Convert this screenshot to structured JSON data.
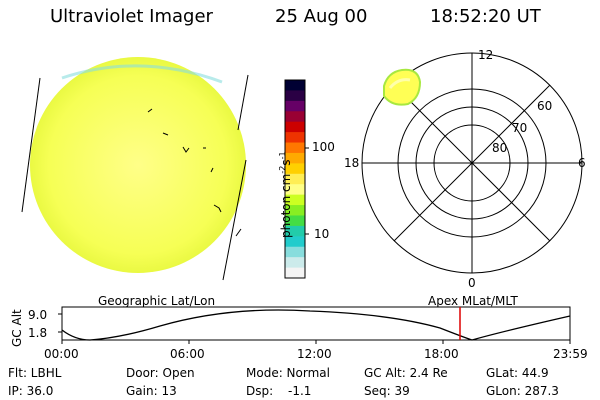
{
  "header": {
    "instrument": "Ultraviolet Imager",
    "date": "25 Aug 00",
    "time": "18:52:20 UT"
  },
  "colorbar": {
    "label": "photon cm-2s-1",
    "ticks": [
      "100",
      "10"
    ],
    "colors": [
      "#000033",
      "#2a0044",
      "#660066",
      "#990033",
      "#cc0000",
      "#ee3300",
      "#ff7700",
      "#ffaa00",
      "#ffd000",
      "#ffee55",
      "#ffff88",
      "#ccff22",
      "#88ee22",
      "#44dd44",
      "#22ccaa",
      "#22cccc",
      "#88dddd",
      "#ccebeb",
      "#f4f4f4"
    ]
  },
  "polar_plot": {
    "labels": {
      "top": "12",
      "bottom": "0",
      "left": "18",
      "right": "6",
      "lat_60": "60",
      "lat_70": "70",
      "lat_80": "80"
    },
    "indicator_color": "#dd0000"
  },
  "timeline": {
    "left_label": "Geographic Lat/Lon",
    "right_label": "Apex MLat/MLT",
    "axis_label": "GC Alt",
    "y_max": "9.0",
    "y_min": "1.8",
    "x_ticks": [
      "00:00",
      "06:00",
      "12:00",
      "18:00",
      "23:59"
    ]
  },
  "info": {
    "filter": "Flt: LBHL",
    "ip": "IP: 36.0",
    "door": "Door: Open",
    "gain": "Gain: 13",
    "mode": "Mode: Normal",
    "dsp_label": "Dsp:",
    "dsp_value": "-1.1",
    "gc_alt": "GC Alt: 2.4 Re",
    "seq": "Seq: 39",
    "glat": "GLat:  44.9",
    "glon": "GLon: 287.3"
  }
}
